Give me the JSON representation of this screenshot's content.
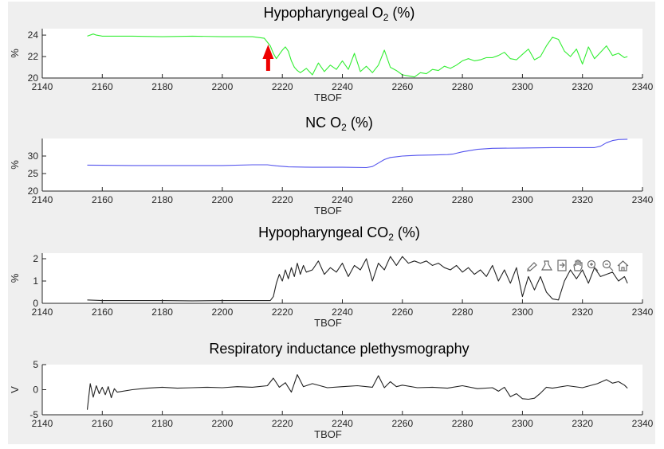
{
  "figure": {
    "background": "#efefef",
    "plot_background": "#ffffff"
  },
  "toolbar": {
    "icons": [
      "brush-icon",
      "data-tips-icon",
      "export-icon",
      "pan-icon",
      "zoom-in-icon",
      "zoom-out-icon",
      "home-icon"
    ]
  },
  "chart_data": [
    {
      "type": "line",
      "title": "Hypopharyngeal O",
      "title_sub": "2",
      "title_suffix": " (%)",
      "xlabel": "TBOF",
      "ylabel": "%",
      "xlim": [
        2140,
        2340
      ],
      "ylim": [
        20,
        24.6
      ],
      "xticks": [
        2140,
        2160,
        2180,
        2200,
        2220,
        2240,
        2260,
        2280,
        2300,
        2320,
        2340
      ],
      "yticks": [
        20,
        22,
        24
      ],
      "color": "#33ee33",
      "annotation": {
        "type": "arrow",
        "x": 2215,
        "color": "#ee0000"
      },
      "series": [
        {
          "x": [
            2155,
            2157,
            2158,
            2160,
            2170,
            2180,
            2190,
            2200,
            2210,
            2214,
            2216,
            2217,
            2218,
            2219,
            2220,
            2221,
            2222,
            2223,
            2224,
            2225,
            2226,
            2228,
            2230,
            2232,
            2234,
            2236,
            2238,
            2240,
            2242,
            2244,
            2246,
            2248,
            2250,
            2252,
            2254,
            2256,
            2258,
            2260,
            2262,
            2264,
            2266,
            2268,
            2270,
            2272,
            2274,
            2276,
            2278,
            2280,
            2282,
            2284,
            2286,
            2288,
            2290,
            2292,
            2294,
            2296,
            2298,
            2300,
            2302,
            2304,
            2306,
            2308,
            2310,
            2312,
            2314,
            2316,
            2318,
            2320,
            2322,
            2324,
            2326,
            2328,
            2330,
            2332,
            2334,
            2335
          ],
          "y": [
            23.9,
            24.1,
            24.0,
            23.9,
            23.9,
            23.85,
            23.9,
            23.85,
            23.85,
            23.7,
            23.0,
            22.3,
            21.8,
            22.2,
            22.6,
            22.9,
            22.5,
            21.6,
            21.0,
            20.7,
            20.5,
            20.9,
            20.3,
            21.4,
            20.6,
            21.2,
            20.8,
            21.6,
            20.8,
            22.3,
            20.6,
            21.1,
            20.5,
            21.2,
            22.6,
            21.0,
            20.7,
            20.3,
            20.2,
            20.1,
            20.5,
            20.4,
            20.8,
            20.7,
            21.1,
            20.9,
            21.2,
            21.6,
            21.8,
            21.6,
            21.7,
            21.9,
            21.9,
            22.1,
            22.4,
            21.8,
            21.7,
            22.2,
            22.7,
            21.7,
            22.0,
            23.0,
            23.8,
            23.6,
            22.5,
            22.0,
            22.7,
            21.3,
            22.9,
            21.8,
            22.4,
            23.0,
            22.1,
            22.3,
            21.9,
            22.0
          ]
        }
      ]
    },
    {
      "type": "line",
      "title": "NC O",
      "title_sub": "2",
      "title_suffix": " (%)",
      "xlabel": "TBOF",
      "ylabel": "%",
      "xlim": [
        2140,
        2340
      ],
      "ylim": [
        20,
        35
      ],
      "xticks": [
        2140,
        2160,
        2180,
        2200,
        2220,
        2240,
        2260,
        2280,
        2300,
        2320,
        2340
      ],
      "yticks": [
        20,
        25,
        30
      ],
      "color": "#5555ee",
      "series": [
        {
          "x": [
            2155,
            2170,
            2190,
            2200,
            2210,
            2215,
            2218,
            2222,
            2230,
            2240,
            2248,
            2250,
            2252,
            2254,
            2256,
            2258,
            2260,
            2265,
            2270,
            2275,
            2277,
            2280,
            2285,
            2290,
            2300,
            2310,
            2320,
            2324,
            2326,
            2328,
            2330,
            2332,
            2335
          ],
          "y": [
            27.4,
            27.3,
            27.3,
            27.3,
            27.5,
            27.5,
            27.2,
            26.9,
            26.8,
            26.8,
            26.7,
            27.0,
            28.0,
            29.0,
            29.6,
            29.8,
            30.0,
            30.2,
            30.3,
            30.4,
            30.6,
            31.2,
            31.9,
            32.2,
            32.3,
            32.4,
            32.4,
            32.4,
            32.8,
            33.8,
            34.4,
            34.7,
            34.8
          ]
        }
      ]
    },
    {
      "type": "line",
      "title": "Hypopharyngeal CO",
      "title_sub": "2",
      "title_suffix": " (%)",
      "xlabel": "TBOF",
      "ylabel": "%",
      "xlim": [
        2140,
        2340
      ],
      "ylim": [
        0,
        2.25
      ],
      "xticks": [
        2140,
        2160,
        2180,
        2200,
        2220,
        2240,
        2260,
        2280,
        2300,
        2320,
        2340
      ],
      "yticks": [
        0,
        1,
        2
      ],
      "color": "#222222",
      "series": [
        {
          "x": [
            2155,
            2160,
            2170,
            2180,
            2190,
            2200,
            2210,
            2216,
            2217,
            2218,
            2219,
            2220,
            2221,
            2222,
            2223,
            2224,
            2225,
            2226,
            2227,
            2228,
            2230,
            2232,
            2234,
            2236,
            2238,
            2240,
            2242,
            2244,
            2246,
            2248,
            2250,
            2252,
            2254,
            2256,
            2258,
            2260,
            2262,
            2264,
            2266,
            2268,
            2270,
            2272,
            2274,
            2276,
            2278,
            2280,
            2282,
            2284,
            2286,
            2288,
            2290,
            2292,
            2294,
            2296,
            2298,
            2300,
            2302,
            2304,
            2306,
            2308,
            2310,
            2312,
            2314,
            2316,
            2318,
            2320,
            2322,
            2324,
            2326,
            2328,
            2330,
            2332,
            2334,
            2335
          ],
          "y": [
            0.15,
            0.12,
            0.12,
            0.12,
            0.11,
            0.12,
            0.12,
            0.12,
            0.3,
            0.9,
            1.3,
            1.0,
            1.5,
            1.1,
            1.6,
            1.2,
            1.8,
            1.3,
            1.7,
            1.4,
            1.5,
            1.9,
            1.3,
            1.6,
            1.4,
            1.8,
            1.2,
            1.7,
            1.5,
            2.0,
            1.0,
            1.8,
            1.5,
            2.1,
            1.7,
            2.1,
            1.8,
            1.9,
            1.8,
            1.9,
            1.7,
            1.8,
            1.6,
            1.5,
            1.7,
            1.4,
            1.6,
            1.3,
            1.5,
            1.2,
            1.7,
            1.0,
            1.5,
            0.9,
            1.6,
            0.3,
            1.2,
            0.6,
            1.2,
            0.5,
            0.2,
            0.15,
            1.0,
            1.5,
            1.1,
            1.5,
            0.9,
            1.6,
            1.2,
            1.3,
            1.4,
            1.0,
            1.2,
            0.9
          ]
        }
      ]
    },
    {
      "type": "line",
      "title": "Respiratory inductance plethysmography",
      "title_sub": "",
      "title_suffix": "",
      "xlabel": "TBOF",
      "ylabel": "V",
      "xlim": [
        2140,
        2340
      ],
      "ylim": [
        -5,
        5
      ],
      "xticks": [
        2140,
        2160,
        2180,
        2200,
        2220,
        2240,
        2260,
        2280,
        2300,
        2320,
        2340
      ],
      "yticks": [
        -5,
        0,
        5
      ],
      "color": "#222222",
      "series": [
        {
          "x": [
            2155,
            2156,
            2157,
            2158,
            2159,
            2160,
            2161,
            2162,
            2163,
            2164,
            2165,
            2170,
            2175,
            2180,
            2185,
            2190,
            2195,
            2200,
            2205,
            2210,
            2215,
            2217,
            2219,
            2221,
            2223,
            2225,
            2227,
            2230,
            2235,
            2240,
            2245,
            2250,
            2252,
            2254,
            2256,
            2258,
            2260,
            2265,
            2270,
            2275,
            2280,
            2285,
            2290,
            2292,
            2294,
            2296,
            2298,
            2300,
            2302,
            2304,
            2306,
            2308,
            2310,
            2315,
            2320,
            2325,
            2328,
            2330,
            2332,
            2334,
            2335
          ],
          "y": [
            -4.0,
            1.2,
            -1.5,
            0.8,
            -0.8,
            0.5,
            -1.0,
            0.6,
            -1.6,
            0.2,
            -0.5,
            0.0,
            0.3,
            0.5,
            0.3,
            0.4,
            0.5,
            0.4,
            0.6,
            0.5,
            0.8,
            2.3,
            0.5,
            1.4,
            -0.5,
            3.0,
            0.6,
            1.2,
            0.4,
            0.6,
            0.8,
            0.5,
            2.8,
            0.4,
            1.6,
            0.6,
            0.9,
            0.4,
            0.5,
            0.3,
            0.8,
            0.2,
            0.4,
            -0.3,
            0.5,
            -1.4,
            -0.8,
            -1.8,
            -1.9,
            -1.7,
            -0.7,
            0.5,
            0.3,
            0.8,
            0.4,
            1.2,
            2.0,
            1.3,
            1.6,
            0.9,
            0.3
          ]
        }
      ]
    }
  ]
}
